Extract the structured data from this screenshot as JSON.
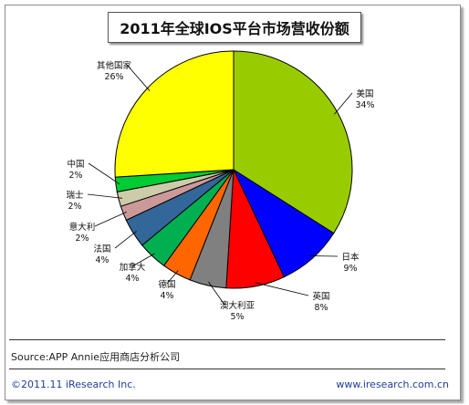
{
  "chart_data": {
    "type": "pie",
    "title": "2011年全球IOS平台市场营收份额",
    "slices": [
      {
        "label": "美国",
        "value": 34,
        "display": "34%",
        "color": "#99cc00"
      },
      {
        "label": "日本",
        "value": 9,
        "display": "9%",
        "color": "#0000ff"
      },
      {
        "label": "英国",
        "value": 8,
        "display": "8%",
        "color": "#ff0000"
      },
      {
        "label": "澳大利亚",
        "value": 5,
        "display": "5%",
        "color": "#808080"
      },
      {
        "label": "德国",
        "value": 4,
        "display": "4%",
        "color": "#ff6600"
      },
      {
        "label": "加拿大",
        "value": 4,
        "display": "4%",
        "color": "#00b050"
      },
      {
        "label": "法国",
        "value": 4,
        "display": "4%",
        "color": "#336699"
      },
      {
        "label": "意大利",
        "value": 2,
        "display": "2%",
        "color": "#cc9999"
      },
      {
        "label": "瑞士",
        "value": 2,
        "display": "2%",
        "color": "#ccccaa"
      },
      {
        "label": "中国",
        "value": 2,
        "display": "2%",
        "color": "#00cc33"
      },
      {
        "label": "其他国家",
        "value": 26,
        "display": "26%",
        "color": "#ffff00"
      }
    ]
  },
  "source": "Source:APP Annie应用商店分析公司",
  "footer": {
    "copyright": "©2011.11 iResearch Inc.",
    "website": "www.iresearch.com.cn"
  }
}
